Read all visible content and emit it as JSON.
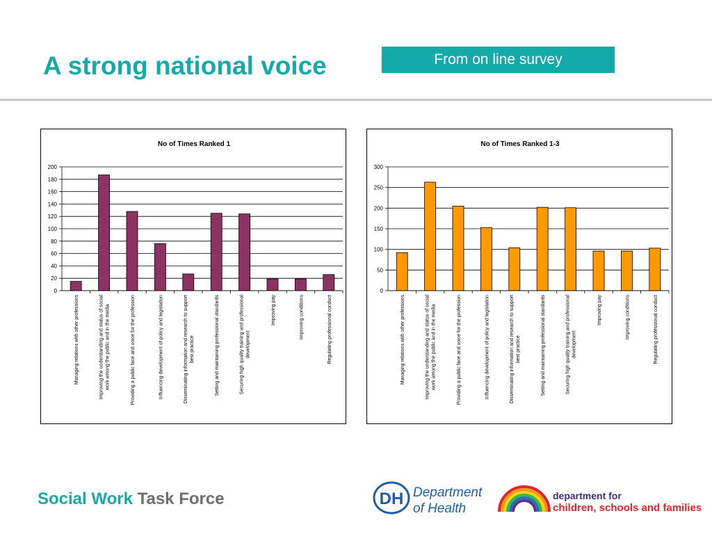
{
  "page": {
    "title": "A strong national voice",
    "badge": "From on line survey"
  },
  "footer": {
    "brand_part1": "Social Work",
    "brand_part2": "Task Force",
    "dh_logo_text": "DH",
    "dh_line1": "Department",
    "dh_line2": "of Health",
    "dcsf_line1": "department for",
    "dcsf_line2": "children, schools and families"
  },
  "colors": {
    "teal": "#15aaaa",
    "chart1_bar": "#8c3363",
    "chart2_bar": "#ff9900"
  },
  "chart_data": [
    {
      "type": "bar",
      "title": "No of Times Ranked 1",
      "categories": [
        "Managing relations with other professions",
        "Improving the understanding and status of social work among the public and in the media",
        "Providing a public face and voice for the profession",
        "Influencing development of policy and legislation",
        "Disseminating information and research to support best practice",
        "Setting and maintaining professional standards",
        "Securing high quality training and professional development",
        "Improving pay",
        "Improving conditions",
        "Regulating professional conduct"
      ],
      "category_lines": [
        [
          "Managing relations with other professions"
        ],
        [
          "Improving the understanding and status of social",
          "work among the public and in the media"
        ],
        [
          "Providing a public face and voice for the profession"
        ],
        [
          "Influencing development of policy and legislation"
        ],
        [
          "Disseminating information and research to support",
          "best practice"
        ],
        [
          "Setting and maintaining professional standards"
        ],
        [
          "Securing high quality training and professional",
          "development"
        ],
        [
          "Improving pay"
        ],
        [
          "Improving conditions"
        ],
        [
          "Regulating professional conduct"
        ]
      ],
      "values": [
        15,
        187,
        128,
        76,
        27,
        125,
        124,
        19,
        19,
        26
      ],
      "ylim": [
        0,
        200
      ],
      "yticks": [
        0,
        20,
        40,
        60,
        80,
        100,
        120,
        140,
        160,
        180,
        200
      ],
      "grid": true,
      "legend": "none"
    },
    {
      "type": "bar",
      "title": "No of Times Ranked 1-3",
      "categories": [
        "Managing relations with other professions",
        "Improving the understanding and status of social work among the public and in the media",
        "Providing a public face and voice for the profession",
        "Influencing development of policy and legislation",
        "Disseminating information and research to support best practice",
        "Setting and maintaining professional standards",
        "Securing high quality training and professional development",
        "Improving pay",
        "Improving conditions",
        "Regulating professional conduct"
      ],
      "category_lines": [
        [
          "Managing relations with other professions"
        ],
        [
          "Improving the understanding and status of social",
          "work among the public and in the media"
        ],
        [
          "Providing a public face and voice for the profession"
        ],
        [
          "Influencing development of policy and legislation"
        ],
        [
          "Disseminating information and research to support",
          "best practice"
        ],
        [
          "Setting and maintaining professional standards"
        ],
        [
          "Securing high quality training and professional",
          "development"
        ],
        [
          "Improving pay"
        ],
        [
          "Improving conditions"
        ],
        [
          "Regulating professional conduct"
        ]
      ],
      "values": [
        92,
        263,
        205,
        153,
        104,
        202,
        201,
        96,
        96,
        103
      ],
      "ylim": [
        0,
        300
      ],
      "yticks": [
        0,
        50,
        100,
        150,
        200,
        250,
        300
      ],
      "grid": true,
      "legend": "none"
    }
  ]
}
